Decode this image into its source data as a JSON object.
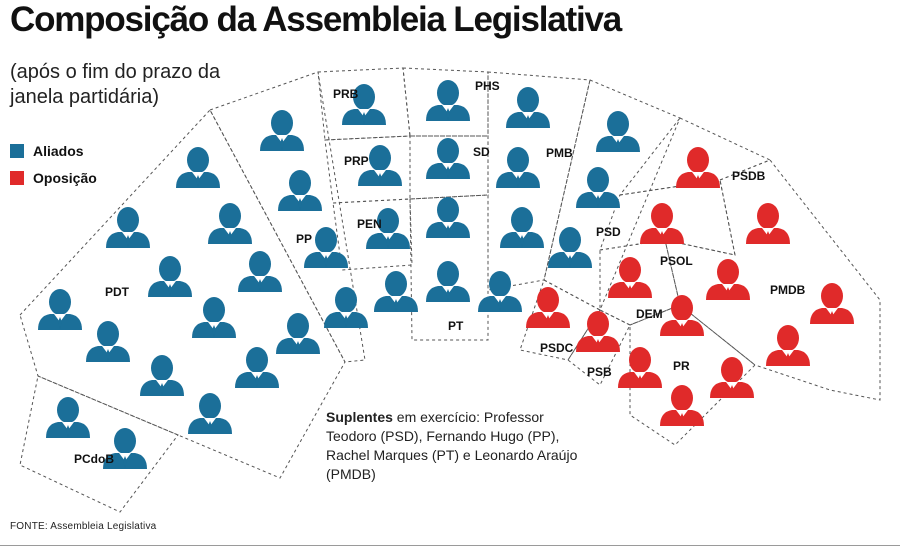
{
  "title": "Composição da Assembleia Legislativa",
  "subtitle": "(após o fim do prazo da janela partidária)",
  "legend": [
    {
      "label": "Aliados",
      "color": "#1b6f99"
    },
    {
      "label": "Oposição",
      "color": "#e02a2a"
    }
  ],
  "parties": [
    {
      "name": "PCdoB",
      "group": "Aliados",
      "seats": 2
    },
    {
      "name": "PDT",
      "group": "Aliados",
      "seats": 15
    },
    {
      "name": "PP",
      "group": "Aliados",
      "seats": 5
    },
    {
      "name": "PEN",
      "group": "Aliados",
      "seats": 1
    },
    {
      "name": "PRP",
      "group": "Aliados",
      "seats": 1
    },
    {
      "name": "PRB",
      "group": "Aliados",
      "seats": 1
    },
    {
      "name": "PHS",
      "group": "Aliados",
      "seats": 1
    },
    {
      "name": "SD",
      "group": "Aliados",
      "seats": 1
    },
    {
      "name": "PT",
      "group": "Aliados",
      "seats": 4
    },
    {
      "name": "PMB",
      "group": "Aliados",
      "seats": 4
    },
    {
      "name": "PSD",
      "group": "Aliados",
      "seats": 4
    },
    {
      "name": "PSDC",
      "group": "Oposição",
      "seats": 1
    },
    {
      "name": "PSB",
      "group": "Oposição",
      "seats": 1
    },
    {
      "name": "DEM",
      "group": "Oposição",
      "seats": 1
    },
    {
      "name": "PR",
      "group": "Oposição",
      "seats": 3
    },
    {
      "name": "PSOL",
      "group": "Oposição",
      "seats": 1
    },
    {
      "name": "PSDB",
      "group": "Oposição",
      "seats": 1
    },
    {
      "name": "PMDB",
      "group": "Oposição",
      "seats": 5
    }
  ],
  "notes": {
    "lead": "Suplentes",
    "text": " em exercício: Professor Teodoro (PSD), Fernando Hugo (PP), Rachel Marques (PT) e Leonardo Araújo (PMDB)"
  },
  "source": "FONTE: Assembleia Legislativa"
}
